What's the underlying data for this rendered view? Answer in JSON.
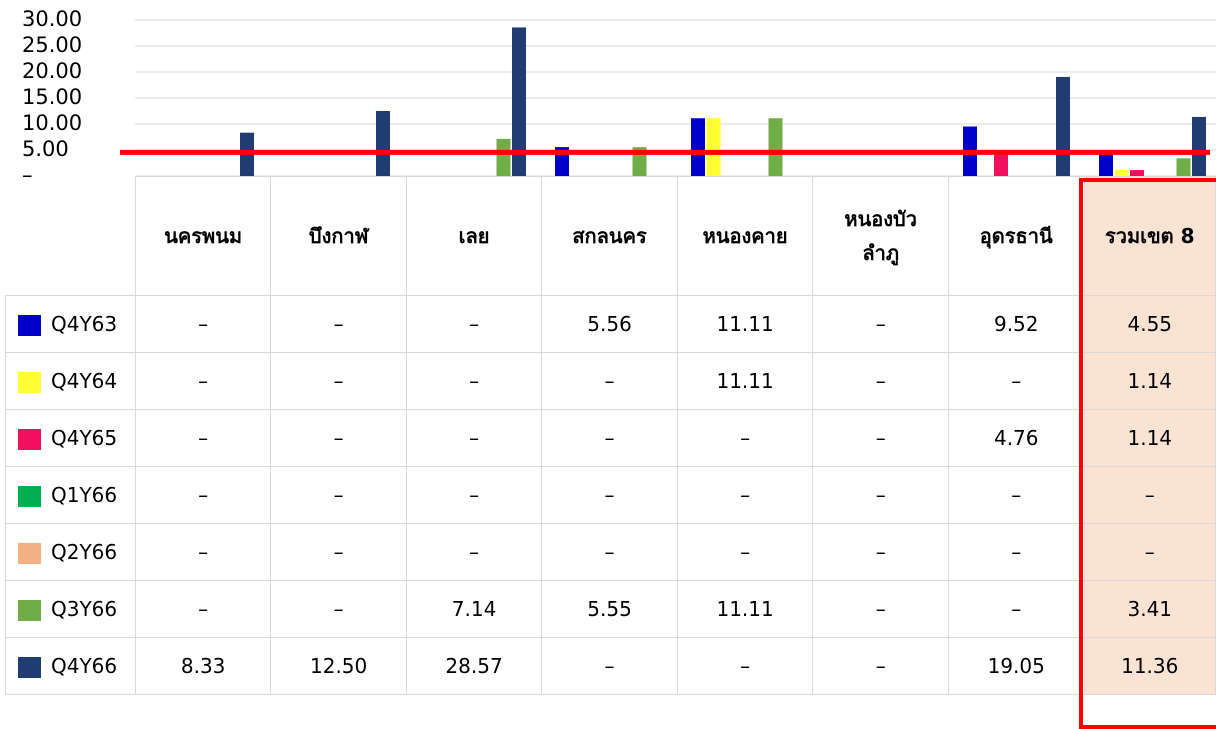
{
  "chart_data": {
    "type": "bar",
    "categories": [
      "นครพนม",
      "บึงกาฬ",
      "เลย",
      "สกลนคร",
      "หนองคาย",
      "หนองบัวลำภู",
      "อุดรธานี",
      "รวมเขต 8"
    ],
    "category_lines": [
      [
        "นครพนม"
      ],
      [
        "บึงกาฬ"
      ],
      [
        "เลย"
      ],
      [
        "สกลนคร"
      ],
      [
        "หนองคาย"
      ],
      [
        "หนองบัว",
        "ลำภู"
      ],
      [
        "อุดรธานี"
      ],
      [
        "รวมเขต 8"
      ]
    ],
    "series": [
      {
        "name": "Q4Y63",
        "color": "#0000cc",
        "values": [
          null,
          null,
          null,
          5.56,
          11.11,
          null,
          9.52,
          4.55
        ],
        "labels": [
          "–",
          "–",
          "–",
          "5.56",
          "11.11",
          "–",
          "9.52",
          "4.55"
        ]
      },
      {
        "name": "Q4Y64",
        "color": "#ffff33",
        "values": [
          null,
          null,
          null,
          null,
          11.11,
          null,
          null,
          1.14
        ],
        "labels": [
          "–",
          "–",
          "–",
          "–",
          "11.11",
          "–",
          "–",
          "1.14"
        ]
      },
      {
        "name": "Q4Y65",
        "color": "#f0105e",
        "values": [
          null,
          null,
          null,
          null,
          null,
          null,
          4.76,
          1.14
        ],
        "labels": [
          "–",
          "–",
          "–",
          "–",
          "–",
          "–",
          "4.76",
          "1.14"
        ]
      },
      {
        "name": "Q1Y66",
        "color": "#00b050",
        "values": [
          null,
          null,
          null,
          null,
          null,
          null,
          null,
          null
        ],
        "labels": [
          "–",
          "–",
          "–",
          "–",
          "–",
          "–",
          "–",
          "–"
        ]
      },
      {
        "name": "Q2Y66",
        "color": "#f4b183",
        "values": [
          null,
          null,
          null,
          null,
          null,
          null,
          null,
          null
        ],
        "labels": [
          "–",
          "–",
          "–",
          "–",
          "–",
          "–",
          "–",
          "–"
        ]
      },
      {
        "name": "Q3Y66",
        "color": "#70ad47",
        "values": [
          null,
          null,
          7.14,
          5.55,
          11.11,
          null,
          null,
          3.41
        ],
        "labels": [
          "–",
          "–",
          "7.14",
          "5.55",
          "11.11",
          "–",
          "–",
          "3.41"
        ]
      },
      {
        "name": "Q4Y66",
        "color": "#1f3d73",
        "values": [
          8.33,
          12.5,
          28.57,
          null,
          null,
          null,
          19.05,
          11.36
        ],
        "labels": [
          "8.33",
          "12.50",
          "28.57",
          "–",
          "–",
          "–",
          "19.05",
          "11.36"
        ]
      }
    ],
    "ylim": [
      0,
      30
    ],
    "yticks": [
      0,
      5,
      10,
      15,
      20,
      25,
      30
    ],
    "ytick_labels": [
      "–",
      "5.00",
      "10.00",
      "15.00",
      "20.00",
      "25.00",
      "30.00"
    ],
    "reference_line": 4.55,
    "reference_line_color": "#ff0000",
    "highlight_category": "รวมเขต 8",
    "highlight_color": "#fbe3d4",
    "grid": true,
    "legend": "data-table"
  }
}
